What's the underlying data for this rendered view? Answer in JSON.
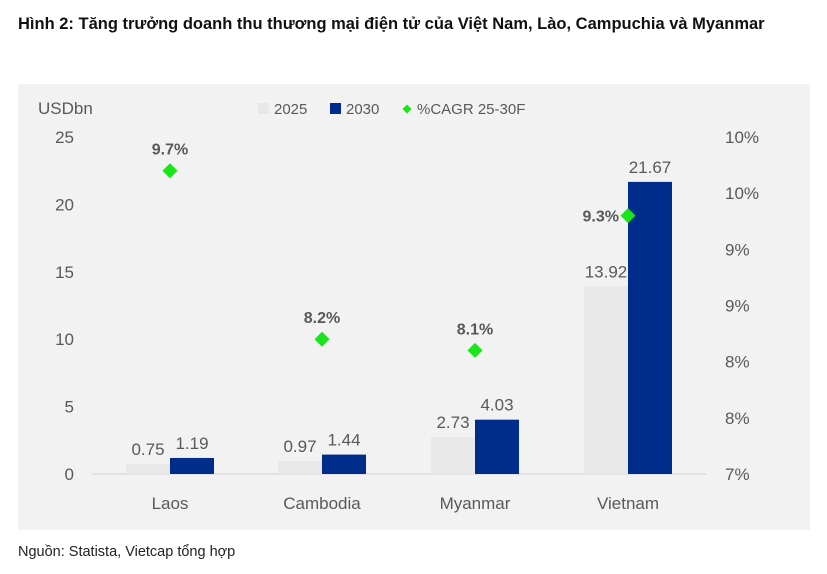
{
  "title": "Hình 2: Tăng trưởng doanh thu thương mại điện tử của Việt Nam, Lào, Campuchia và Myanmar",
  "source": "Nguồn: Statista, Vietcap tổng hợp",
  "colors": {
    "y2025": "#e8e8e8",
    "y2030": "#002d8c",
    "cagr": "#19e619",
    "panel": "#f2f2f2"
  },
  "chart_data": {
    "type": "bar",
    "ylabel": "USDbn",
    "categories": [
      "Laos",
      "Cambodia",
      "Myanmar",
      "Vietnam"
    ],
    "ylim": [
      0,
      25
    ],
    "yticks": [
      "0",
      "5",
      "10",
      "15",
      "20",
      "25"
    ],
    "y2ticks": [
      "7%",
      "8%",
      "8%",
      "9%",
      "9%",
      "10%",
      "10%"
    ],
    "y2lim": [
      0.07,
      0.1
    ],
    "series": [
      {
        "name": "2025",
        "values": [
          0.75,
          0.97,
          2.73,
          13.92
        ],
        "labels": [
          "0.75",
          "0.97",
          "2.73",
          "13.92"
        ]
      },
      {
        "name": "2030",
        "values": [
          1.19,
          1.44,
          4.03,
          21.67
        ],
        "labels": [
          "1.19",
          "1.44",
          "4.03",
          "21.67"
        ]
      }
    ],
    "cagr": {
      "name": "%CAGR 25-30F",
      "values": [
        0.097,
        0.082,
        0.081,
        0.093
      ],
      "labels": [
        "9.7%",
        "8.2%",
        "8.1%",
        "9.3%"
      ]
    },
    "legend_position": "top-center",
    "grid": false
  }
}
